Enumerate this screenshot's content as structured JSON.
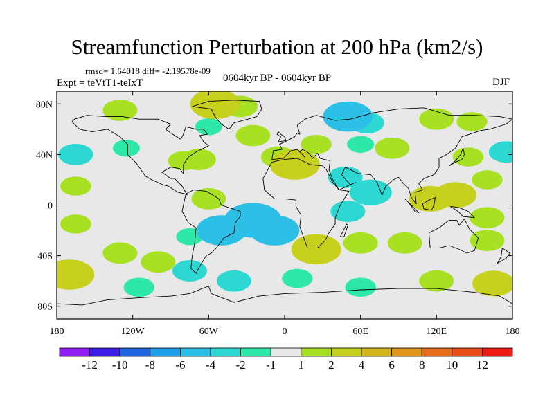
{
  "title": "Streamfunction Perturbation at 200 hPa (km2/s)",
  "stats": "rmsd= 1.64018 diff= -2.19578e-09",
  "expt": "Expt = teVtT1-teIxT",
  "period": "0604kyr BP - 0604kyr BP",
  "season": "DJF",
  "chart_data": {
    "type": "heatmap",
    "title": "Streamfunction Perturbation at 200 hPa (km2/s)",
    "projection": "cylindrical equidistant",
    "x_range": [
      -180,
      180
    ],
    "y_range": [
      -90,
      90
    ],
    "x_ticks": [
      {
        "value": -180,
        "label": "180"
      },
      {
        "value": -120,
        "label": "120W"
      },
      {
        "value": -60,
        "label": "60W"
      },
      {
        "value": 0,
        "label": "0"
      },
      {
        "value": 60,
        "label": "60E"
      },
      {
        "value": 120,
        "label": "120E"
      },
      {
        "value": 180,
        "label": "180"
      }
    ],
    "y_ticks": [
      {
        "value": 80,
        "label": "80N"
      },
      {
        "value": 40,
        "label": "40N"
      },
      {
        "value": 0,
        "label": "0"
      },
      {
        "value": -40,
        "label": "40S"
      },
      {
        "value": -80,
        "label": "80S"
      }
    ],
    "colorbar": {
      "orientation": "horizontal",
      "colors": [
        "#8f1cf0",
        "#3c1ee6",
        "#2166e0",
        "#1ea0e8",
        "#2cc0e6",
        "#2ed8d2",
        "#2ee8a8",
        "#e8e8e8",
        "#a8e022",
        "#c8d01e",
        "#d2b41c",
        "#e0961c",
        "#e66e1a",
        "#ea4c18",
        "#ec1c12"
      ],
      "labels": [
        "-12",
        "-10",
        "-8",
        "-6",
        "-4",
        "-2",
        "-1",
        "1",
        "2",
        "4",
        "6",
        "8",
        "10",
        "12"
      ]
    },
    "anomalies": [
      {
        "lon": -130,
        "lat": 75,
        "value": 2
      },
      {
        "lon": -55,
        "lat": 80,
        "value": 4
      },
      {
        "lon": -35,
        "lat": 78,
        "value": 2
      },
      {
        "lon": -60,
        "lat": 62,
        "value": -1
      },
      {
        "lon": -25,
        "lat": 55,
        "value": 2
      },
      {
        "lon": 50,
        "lat": 70,
        "value": -4
      },
      {
        "lon": 65,
        "lat": 65,
        "value": -2
      },
      {
        "lon": 120,
        "lat": 68,
        "value": 2
      },
      {
        "lon": 148,
        "lat": 66,
        "value": 1.5
      },
      {
        "lon": -165,
        "lat": 40,
        "value": -2
      },
      {
        "lon": -125,
        "lat": 45,
        "value": -1
      },
      {
        "lon": -80,
        "lat": 35,
        "value": 1.5
      },
      {
        "lon": -68,
        "lat": 36,
        "value": 2
      },
      {
        "lon": -5,
        "lat": 38,
        "value": 2
      },
      {
        "lon": 8,
        "lat": 32,
        "value": 4
      },
      {
        "lon": 25,
        "lat": 48,
        "value": 1.5
      },
      {
        "lon": 60,
        "lat": 48,
        "value": -1
      },
      {
        "lon": 85,
        "lat": 45,
        "value": 2
      },
      {
        "lon": 145,
        "lat": 38,
        "value": 1.5
      },
      {
        "lon": 175,
        "lat": 42,
        "value": -2
      },
      {
        "lon": 48,
        "lat": 22,
        "value": -2
      },
      {
        "lon": 68,
        "lat": 10,
        "value": -3
      },
      {
        "lon": 50,
        "lat": -5,
        "value": -2
      },
      {
        "lon": -165,
        "lat": 15,
        "value": 1.5
      },
      {
        "lon": -165,
        "lat": -15,
        "value": 1.5
      },
      {
        "lon": 115,
        "lat": 5,
        "value": 3
      },
      {
        "lon": 135,
        "lat": 8,
        "value": 3
      },
      {
        "lon": 160,
        "lat": 20,
        "value": 1.5
      },
      {
        "lon": 160,
        "lat": -10,
        "value": 2
      },
      {
        "lon": -60,
        "lat": 5,
        "value": 2
      },
      {
        "lon": -50,
        "lat": -20,
        "value": -4
      },
      {
        "lon": -25,
        "lat": -12,
        "value": -5
      },
      {
        "lon": -8,
        "lat": -20,
        "value": -4
      },
      {
        "lon": -75,
        "lat": -25,
        "value": -1
      },
      {
        "lon": -130,
        "lat": -38,
        "value": 2
      },
      {
        "lon": -100,
        "lat": -45,
        "value": 2
      },
      {
        "lon": -75,
        "lat": -52,
        "value": -2
      },
      {
        "lon": 25,
        "lat": -35,
        "value": 4
      },
      {
        "lon": 60,
        "lat": -30,
        "value": 2
      },
      {
        "lon": 95,
        "lat": -30,
        "value": 2
      },
      {
        "lon": 160,
        "lat": -28,
        "value": 2
      },
      {
        "lon": -170,
        "lat": -55,
        "value": 4
      },
      {
        "lon": -115,
        "lat": -65,
        "value": -1.5
      },
      {
        "lon": -40,
        "lat": -60,
        "value": -2
      },
      {
        "lon": 10,
        "lat": -58,
        "value": -1.5
      },
      {
        "lon": 60,
        "lat": -65,
        "value": -1.5
      },
      {
        "lon": 120,
        "lat": -60,
        "value": 2
      },
      {
        "lon": 165,
        "lat": -62,
        "value": 3
      }
    ],
    "coastlines": {
      "north_america": [
        [
          -168,
          66
        ],
        [
          -162,
          60
        ],
        [
          -152,
          58
        ],
        [
          -140,
          60
        ],
        [
          -130,
          54
        ],
        [
          -124,
          48
        ],
        [
          -124,
          40
        ],
        [
          -117,
          33
        ],
        [
          -110,
          23
        ],
        [
          -105,
          20
        ],
        [
          -96,
          16
        ],
        [
          -92,
          15
        ],
        [
          -84,
          10
        ],
        [
          -79,
          9
        ],
        [
          -77,
          8
        ],
        [
          -81,
          15
        ],
        [
          -87,
          21
        ],
        [
          -90,
          21
        ],
        [
          -97,
          26
        ],
        [
          -90,
          30
        ],
        [
          -83,
          29
        ],
        [
          -80,
          25
        ],
        [
          -80,
          32
        ],
        [
          -76,
          38
        ],
        [
          -70,
          42
        ],
        [
          -64,
          45
        ],
        [
          -60,
          47
        ],
        [
          -64,
          50
        ],
        [
          -67,
          55
        ],
        [
          -61,
          56
        ],
        [
          -64,
          60
        ],
        [
          -70,
          60
        ],
        [
          -78,
          62
        ],
        [
          -80,
          56
        ],
        [
          -82,
          52
        ],
        [
          -90,
          57
        ],
        [
          -94,
          60
        ],
        [
          -90,
          64
        ],
        [
          -100,
          68
        ],
        [
          -115,
          68
        ],
        [
          -128,
          70
        ],
        [
          -141,
          70
        ],
        [
          -156,
          71
        ],
        [
          -166,
          68
        ],
        [
          -168,
          66
        ]
      ],
      "greenland": [
        [
          -73,
          78
        ],
        [
          -60,
          82
        ],
        [
          -40,
          83
        ],
        [
          -20,
          82
        ],
        [
          -18,
          76
        ],
        [
          -22,
          70
        ],
        [
          -40,
          65
        ],
        [
          -44,
          60
        ],
        [
          -50,
          64
        ],
        [
          -55,
          70
        ],
        [
          -58,
          76
        ],
        [
          -73,
          78
        ]
      ],
      "south_america": [
        [
          -78,
          9
        ],
        [
          -72,
          12
        ],
        [
          -62,
          11
        ],
        [
          -52,
          5
        ],
        [
          -50,
          0
        ],
        [
          -44,
          -2
        ],
        [
          -35,
          -5
        ],
        [
          -35,
          -9
        ],
        [
          -39,
          -14
        ],
        [
          -40,
          -22
        ],
        [
          -48,
          -26
        ],
        [
          -54,
          -34
        ],
        [
          -58,
          -38
        ],
        [
          -62,
          -40
        ],
        [
          -65,
          -45
        ],
        [
          -68,
          -50
        ],
        [
          -70,
          -54
        ],
        [
          -74,
          -50
        ],
        [
          -73,
          -40
        ],
        [
          -71,
          -30
        ],
        [
          -70,
          -18
        ],
        [
          -76,
          -14
        ],
        [
          -81,
          -5
        ],
        [
          -80,
          0
        ],
        [
          -78,
          9
        ]
      ],
      "africa": [
        [
          -17,
          21
        ],
        [
          -16,
          12
        ],
        [
          -8,
          5
        ],
        [
          0,
          5
        ],
        [
          9,
          4
        ],
        [
          9,
          -1
        ],
        [
          13,
          -8
        ],
        [
          12,
          -17
        ],
        [
          18,
          -34
        ],
        [
          26,
          -34
        ],
        [
          32,
          -28
        ],
        [
          35,
          -22
        ],
        [
          40,
          -15
        ],
        [
          40,
          -10
        ],
        [
          44,
          0
        ],
        [
          51,
          11
        ],
        [
          43,
          12
        ],
        [
          38,
          18
        ],
        [
          33,
          28
        ],
        [
          30,
          31
        ],
        [
          20,
          32
        ],
        [
          10,
          37
        ],
        [
          -1,
          36
        ],
        [
          -10,
          34
        ],
        [
          -17,
          21
        ]
      ],
      "eurasia": [
        [
          -10,
          36
        ],
        [
          -9,
          43
        ],
        [
          -2,
          44
        ],
        [
          -4,
          48
        ],
        [
          2,
          51
        ],
        [
          8,
          54
        ],
        [
          10,
          57
        ],
        [
          12,
          56
        ],
        [
          10,
          63
        ],
        [
          16,
          68
        ],
        [
          25,
          71
        ],
        [
          40,
          67
        ],
        [
          52,
          68
        ],
        [
          70,
          73
        ],
        [
          90,
          76
        ],
        [
          110,
          77
        ],
        [
          130,
          71
        ],
        [
          150,
          71
        ],
        [
          170,
          70
        ],
        [
          180,
          68
        ],
        [
          175,
          64
        ],
        [
          162,
          60
        ],
        [
          155,
          59
        ],
        [
          140,
          54
        ],
        [
          135,
          45
        ],
        [
          128,
          40
        ],
        [
          122,
          37
        ],
        [
          122,
          30
        ],
        [
          118,
          24
        ],
        [
          110,
          21
        ],
        [
          106,
          17
        ],
        [
          109,
          12
        ],
        [
          103,
          10
        ],
        [
          104,
          1
        ],
        [
          100,
          6
        ],
        [
          98,
          13
        ],
        [
          94,
          17
        ],
        [
          90,
          22
        ],
        [
          86,
          20
        ],
        [
          80,
          15
        ],
        [
          77,
          8
        ],
        [
          73,
          18
        ],
        [
          68,
          24
        ],
        [
          58,
          25
        ],
        [
          56,
          26
        ],
        [
          52,
          28
        ],
        [
          48,
          30
        ],
        [
          45,
          24
        ],
        [
          52,
          16
        ],
        [
          56,
          18
        ],
        [
          43,
          12
        ],
        [
          38,
          20
        ],
        [
          35,
          28
        ],
        [
          36,
          35
        ],
        [
          28,
          37
        ],
        [
          26,
          41
        ],
        [
          22,
          37
        ],
        [
          20,
          40
        ],
        [
          18,
          42
        ],
        [
          14,
          44
        ],
        [
          12,
          42
        ],
        [
          16,
          38
        ],
        [
          10,
          44
        ],
        [
          5,
          43
        ],
        [
          -1,
          37
        ],
        [
          -10,
          36
        ]
      ],
      "australia": [
        [
          114,
          -22
        ],
        [
          122,
          -18
        ],
        [
          130,
          -12
        ],
        [
          136,
          -12
        ],
        [
          138,
          -16
        ],
        [
          142,
          -11
        ],
        [
          146,
          -19
        ],
        [
          153,
          -26
        ],
        [
          150,
          -36
        ],
        [
          144,
          -38
        ],
        [
          138,
          -35
        ],
        [
          130,
          -32
        ],
        [
          122,
          -34
        ],
        [
          115,
          -34
        ],
        [
          114,
          -22
        ]
      ],
      "antarctica": [
        [
          -180,
          -78
        ],
        [
          -160,
          -79
        ],
        [
          -140,
          -75
        ],
        [
          -110,
          -73
        ],
        [
          -90,
          -72
        ],
        [
          -75,
          -70
        ],
        [
          -60,
          -64
        ],
        [
          -58,
          -70
        ],
        [
          -40,
          -77
        ],
        [
          -20,
          -72
        ],
        [
          0,
          -70
        ],
        [
          30,
          -69
        ],
        [
          60,
          -67
        ],
        [
          90,
          -66
        ],
        [
          120,
          -66
        ],
        [
          150,
          -69
        ],
        [
          170,
          -72
        ],
        [
          180,
          -78
        ]
      ],
      "uk": [
        [
          -5,
          50
        ],
        [
          1,
          51
        ],
        [
          0,
          54
        ],
        [
          -3,
          56
        ],
        [
          -5,
          58
        ],
        [
          -6,
          56
        ],
        [
          -3,
          54
        ],
        [
          -5,
          50
        ]
      ],
      "japan": [
        [
          130,
          31
        ],
        [
          135,
          34
        ],
        [
          140,
          36
        ],
        [
          142,
          40
        ],
        [
          141,
          45
        ],
        [
          139,
          40
        ],
        [
          135,
          35
        ],
        [
          130,
          31
        ]
      ],
      "madagascar": [
        [
          44,
          -25
        ],
        [
          49,
          -15
        ],
        [
          50,
          -16
        ],
        [
          47,
          -25
        ],
        [
          44,
          -25
        ]
      ],
      "new_zealand": [
        [
          172,
          -34
        ],
        [
          178,
          -38
        ],
        [
          175,
          -42
        ],
        [
          168,
          -46
        ],
        [
          171,
          -41
        ],
        [
          172,
          -34
        ]
      ],
      "borneo": [
        [
          109,
          1
        ],
        [
          114,
          4
        ],
        [
          119,
          6
        ],
        [
          118,
          0
        ],
        [
          116,
          -4
        ],
        [
          110,
          -3
        ],
        [
          109,
          1
        ]
      ],
      "sumatra": [
        [
          95,
          5
        ],
        [
          100,
          0
        ],
        [
          106,
          -6
        ],
        [
          103,
          -5
        ],
        [
          98,
          2
        ],
        [
          95,
          5
        ]
      ],
      "new_guinea": [
        [
          131,
          -1
        ],
        [
          138,
          -2
        ],
        [
          145,
          -5
        ],
        [
          150,
          -10
        ],
        [
          141,
          -9
        ],
        [
          137,
          -5
        ],
        [
          131,
          -1
        ]
      ]
    }
  }
}
